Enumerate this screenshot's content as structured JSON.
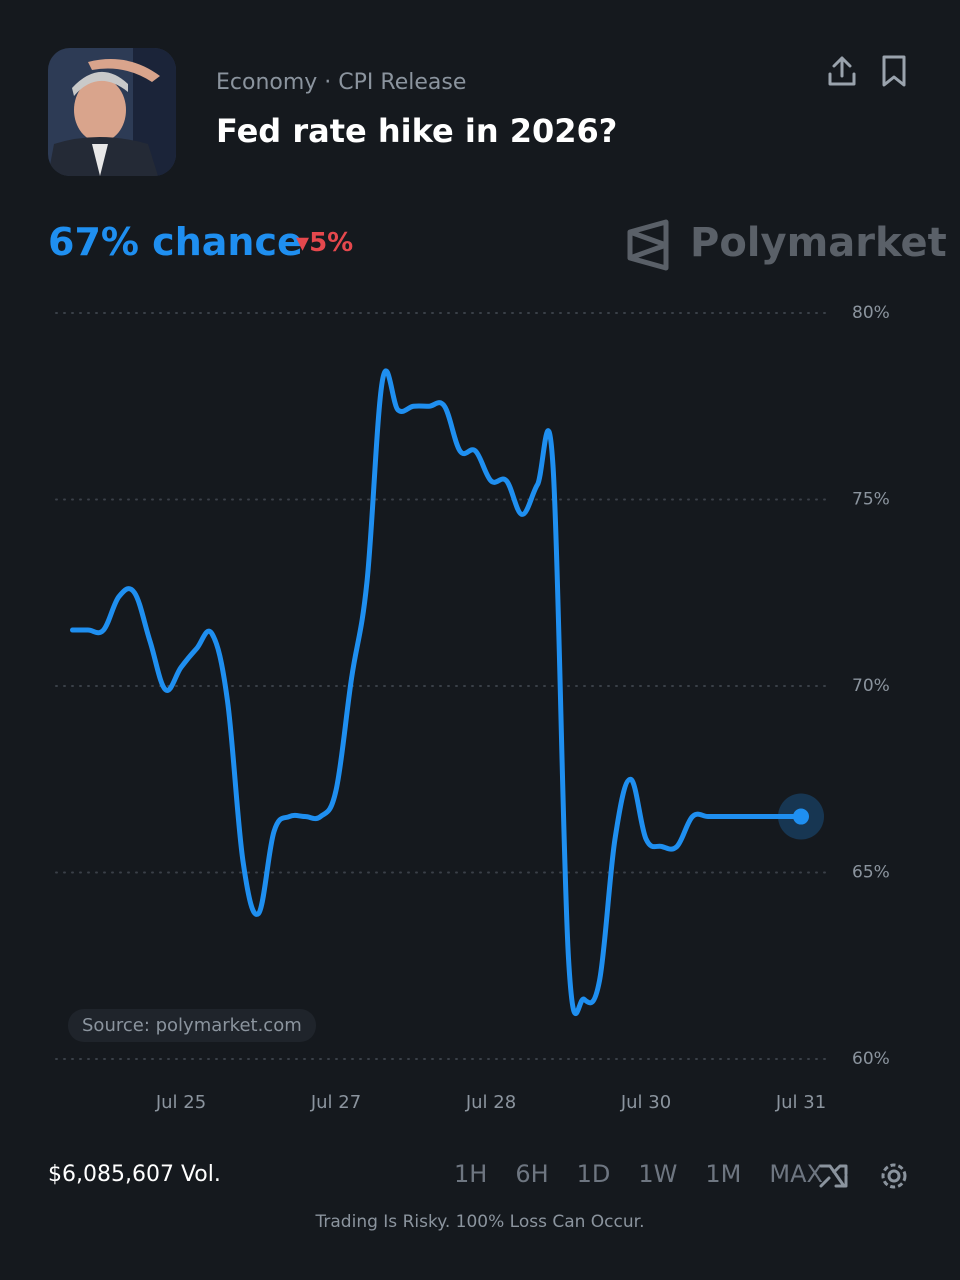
{
  "header": {
    "category": "Economy · CPI Release",
    "title": "Fed rate hike in 2026?"
  },
  "probability": {
    "text": "67% chance",
    "change": "5%"
  },
  "brand": "Polymarket",
  "source": "Source: polymarket.com",
  "volume": "$6,085,607 Vol.",
  "timeframes": [
    "1H",
    "6H",
    "1D",
    "1W",
    "1M",
    "MAX"
  ],
  "disclaimer": "Trading Is Risky. 100% Loss Can Occur.",
  "chart_data": {
    "type": "line",
    "categories": [
      null,
      null,
      null,
      null,
      null,
      null,
      null,
      "Jul 25",
      null,
      null,
      null,
      null,
      null,
      null,
      null,
      null,
      null,
      "Jul 27",
      null,
      null,
      null,
      null,
      null,
      null,
      null,
      null,
      null,
      "Jul 28",
      null,
      null,
      null,
      null,
      null,
      null,
      null,
      null,
      null,
      "Jul 30",
      null,
      null,
      null,
      null,
      null,
      null,
      null,
      null,
      null,
      "Jul 31"
    ],
    "series": [
      {
        "color": "#1f8ff0",
        "values": [
          71.5,
          71.5,
          71.5,
          72.4,
          72.5,
          71.2,
          69.9,
          70.5,
          71.0,
          71.4,
          69.6,
          65.3,
          63.9,
          66.1,
          66.5,
          66.5,
          66.5,
          67.2,
          70.2,
          72.8,
          78.2,
          77.4,
          77.5,
          77.5,
          77.5,
          76.3,
          76.3,
          75.5,
          75.5,
          74.6,
          75.4,
          75.9,
          62.7,
          61.6,
          62.1,
          65.9,
          67.5,
          65.9,
          65.7,
          65.7,
          66.5,
          66.5,
          66.5,
          66.5,
          66.5,
          66.5,
          66.5,
          66.5
        ]
      }
    ],
    "ylim": [
      60,
      80
    ],
    "yticks": [
      {
        "value": 60,
        "label": "60%"
      },
      {
        "value": 65,
        "label": "65%"
      },
      {
        "value": 70,
        "label": "70%"
      },
      {
        "value": 75,
        "label": "75%"
      },
      {
        "value": 80,
        "label": "80%"
      }
    ],
    "grid": true
  }
}
